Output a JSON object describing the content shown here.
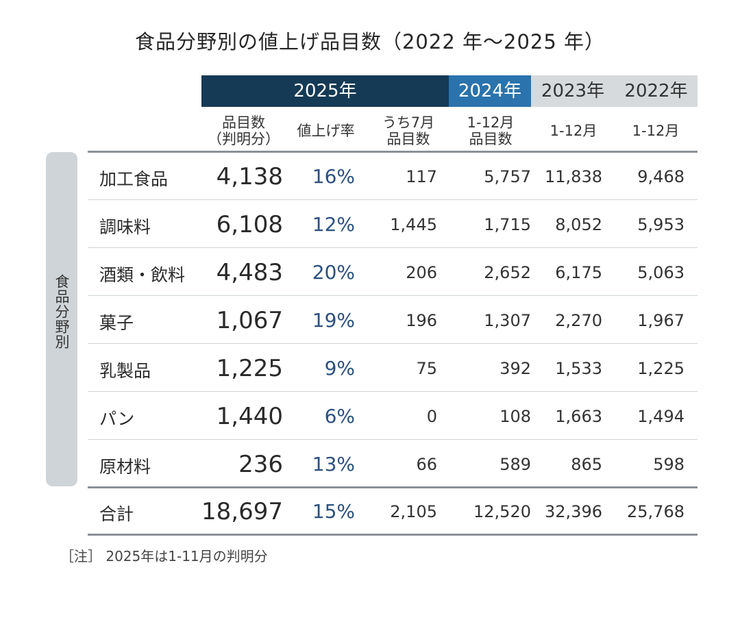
{
  "chart_data": {
    "type": "table",
    "title": "食品分野別の値上げ品目数（2022 年～2025 年）",
    "header_groups": [
      "2025年",
      "2024年",
      "2023年",
      "2022年"
    ],
    "columns": [
      "品目数\n（判明分）",
      "値上げ率",
      "うち7月\n品目数",
      "1-12月\n品目数",
      "1-12月",
      "1-12月"
    ],
    "side_label": "食品分野別",
    "rows": [
      {
        "label": "加工食品",
        "values": [
          "4,138",
          "16%",
          "117",
          "5,757",
          "11,838",
          "9,468"
        ]
      },
      {
        "label": "調味料",
        "values": [
          "6,108",
          "12%",
          "1,445",
          "1,715",
          "8,052",
          "5,953"
        ]
      },
      {
        "label": "酒類・飲料",
        "values": [
          "4,483",
          "20%",
          "206",
          "2,652",
          "6,175",
          "5,063"
        ]
      },
      {
        "label": "菓子",
        "values": [
          "1,067",
          "19%",
          "196",
          "1,307",
          "2,270",
          "1,967"
        ]
      },
      {
        "label": "乳製品",
        "values": [
          "1,225",
          "9%",
          "75",
          "392",
          "1,533",
          "1,225"
        ]
      },
      {
        "label": "パン",
        "values": [
          "1,440",
          "6%",
          "0",
          "108",
          "1,663",
          "1,494"
        ]
      },
      {
        "label": "原材料",
        "values": [
          "236",
          "13%",
          "66",
          "589",
          "865",
          "598"
        ]
      }
    ],
    "total": {
      "label": "合計",
      "values": [
        "18,697",
        "15%",
        "2,105",
        "12,520",
        "32,396",
        "25,768"
      ]
    },
    "note": "［注］ 2025年は1-11月の判明分"
  },
  "colors": {
    "header_2025": "#153a55",
    "header_2024": "#2a73ad",
    "header_other": "#d6dadd",
    "side_bar": "#cfd4d8",
    "rate_text": "#2a5080"
  }
}
